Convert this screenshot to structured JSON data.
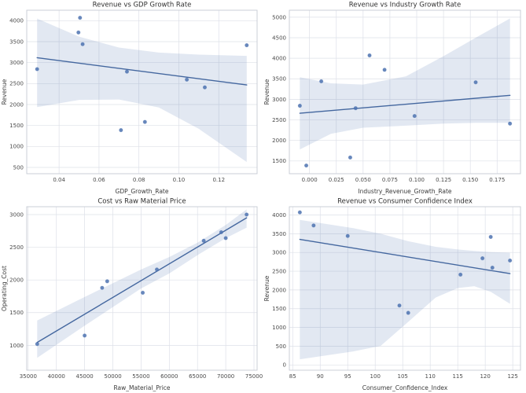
{
  "figure": {
    "background": "#ffffff",
    "rows": 2,
    "cols": 2
  },
  "style": {
    "point_color": "#4C72B0",
    "point_opacity": 0.85,
    "line_color": "#44679f",
    "band_color": "#4C72B0",
    "band_opacity": 0.16,
    "grid_color": "#dde0e8",
    "spine_color": "#c6cad3",
    "title_color": "#303030",
    "label_color": "#3a3a3a",
    "tick_color": "#4a4a4a"
  },
  "chart_data": [
    {
      "type": "scatter",
      "title": "Revenue vs GDP Growth Rate",
      "xlabel": "GDP_Growth_Rate",
      "ylabel": "Revenue",
      "x": [
        0.029,
        0.0497,
        0.0505,
        0.0518,
        0.071,
        0.074,
        0.083,
        0.104,
        0.113,
        0.134
      ],
      "y": [
        2845,
        3720,
        4070,
        3440,
        1390,
        2785,
        1585,
        2595,
        2410,
        3415
      ],
      "xlim": [
        0.0238,
        0.1392
      ],
      "ylim": [
        350,
        4250
      ],
      "xticks": [
        0.04,
        0.06,
        0.08,
        0.1,
        0.12
      ],
      "xtick_labels": [
        "0.04",
        "0.06",
        "0.08",
        "0.10",
        "0.12"
      ],
      "yticks": [
        500,
        1000,
        1500,
        2000,
        2500,
        3000,
        3500,
        4000
      ],
      "ytick_labels": [
        "500",
        "1000",
        "1500",
        "2000",
        "2500",
        "3000",
        "3500",
        "4000"
      ],
      "grid": true,
      "legend": null,
      "regression": true,
      "ci_band": {
        "x": [
          0.029,
          0.05,
          0.07,
          0.09,
          0.11,
          0.134
        ],
        "upper": [
          4050,
          3620,
          3360,
          3240,
          3190,
          3160
        ],
        "lower": [
          1940,
          2110,
          2120,
          1930,
          1420,
          630
        ]
      }
    },
    {
      "type": "scatter",
      "title": "Revenue vs Industry Growth Rate",
      "xlabel": "Industry_Revenue_Growth_Rate",
      "ylabel": "Revenue",
      "x": [
        -0.009,
        -0.003,
        0.011,
        0.038,
        0.043,
        0.056,
        0.07,
        0.098,
        0.155,
        0.187
      ],
      "y": [
        2845,
        1390,
        3440,
        1585,
        2785,
        4070,
        3720,
        2595,
        3415,
        2410
      ],
      "xlim": [
        -0.0188,
        0.1968
      ],
      "ylim": [
        1190,
        5170
      ],
      "xticks": [
        0.0,
        0.025,
        0.05,
        0.075,
        0.1,
        0.125,
        0.15,
        0.175
      ],
      "xtick_labels": [
        "0.000",
        "0.025",
        "0.050",
        "0.075",
        "0.100",
        "0.125",
        "0.150",
        "0.175"
      ],
      "yticks": [
        1500,
        2000,
        2500,
        3000,
        3500,
        4000,
        4500,
        5000
      ],
      "ytick_labels": [
        "1500",
        "2000",
        "2500",
        "3000",
        "3500",
        "4000",
        "4500",
        "5000"
      ],
      "grid": true,
      "legend": null,
      "regression": true,
      "ci_band": {
        "x": [
          -0.009,
          0.02,
          0.05,
          0.09,
          0.125,
          0.155,
          0.187
        ],
        "upper": [
          3540,
          3390,
          3360,
          3560,
          4050,
          4500,
          4970
        ],
        "lower": [
          1780,
          2160,
          2310,
          2360,
          2410,
          2430,
          2430
        ]
      }
    },
    {
      "type": "scatter",
      "title": "Cost vs Raw Material Price",
      "xlabel": "Raw_Material_Price",
      "ylabel": "Operating_Cost",
      "x": [
        36600,
        45000,
        48100,
        49000,
        55300,
        57800,
        66100,
        69200,
        70000,
        73700
      ],
      "y": [
        1020,
        1150,
        1880,
        1980,
        1805,
        2160,
        2600,
        2730,
        2640,
        3000
      ],
      "xlim": [
        34745,
        75555
      ],
      "ylim": [
        620,
        3120
      ],
      "xticks": [
        35000,
        40000,
        45000,
        50000,
        55000,
        60000,
        65000,
        70000,
        75000
      ],
      "xtick_labels": [
        "35000",
        "40000",
        "45000",
        "50000",
        "55000",
        "60000",
        "65000",
        "70000",
        "75000"
      ],
      "yticks": [
        1000,
        1500,
        2000,
        2500,
        3000
      ],
      "ytick_labels": [
        "1000",
        "1500",
        "2000",
        "2500",
        "3000"
      ],
      "grid": true,
      "legend": null,
      "regression": true,
      "ci_band": {
        "x": [
          36600,
          45000,
          55000,
          60000,
          65000,
          70000,
          73700
        ],
        "upper": [
          1380,
          1740,
          2160,
          2350,
          2570,
          2840,
          3080
        ],
        "lower": [
          810,
          1300,
          1870,
          2100,
          2380,
          2640,
          2800
        ]
      }
    },
    {
      "type": "scatter",
      "title": "Revenue vs Consumer Confidence Index",
      "xlabel": "Consumer_Confidence_Index",
      "ylabel": "Revenue",
      "x": [
        86.3,
        88.8,
        95.0,
        104.4,
        106.0,
        115.5,
        119.5,
        121.0,
        121.3,
        124.5
      ],
      "y": [
        4070,
        3720,
        3440,
        1585,
        1390,
        2410,
        2845,
        3415,
        2595,
        2785
      ],
      "xlim": [
        84.39,
        126.41
      ],
      "ylim": [
        -140,
        4220
      ],
      "xticks": [
        85,
        90,
        95,
        100,
        105,
        110,
        115,
        120,
        125
      ],
      "xtick_labels": [
        "85",
        "90",
        "95",
        "100",
        "105",
        "110",
        "115",
        "120",
        "125"
      ],
      "yticks": [
        0,
        500,
        1000,
        1500,
        2000,
        2500,
        3000,
        3500,
        4000
      ],
      "ytick_labels": [
        "0",
        "500",
        "1000",
        "1500",
        "2000",
        "2500",
        "3000",
        "3500",
        "4000"
      ],
      "grid": true,
      "legend": null,
      "regression": true,
      "ci_band": {
        "x": [
          86.3,
          96,
          101,
          106,
          111,
          115,
          118,
          121,
          124.5
        ],
        "upper": [
          3870,
          3650,
          3500,
          3300,
          3150,
          3080,
          3040,
          3010,
          2990
        ],
        "lower": [
          150,
          360,
          510,
          1150,
          1800,
          2050,
          2100,
          1950,
          1630
        ]
      }
    }
  ]
}
